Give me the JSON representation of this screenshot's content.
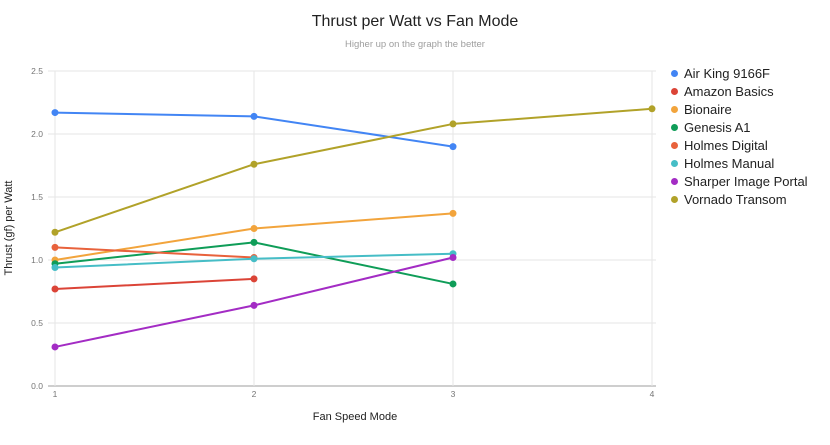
{
  "chart_data": {
    "type": "line",
    "title": "Thrust per Watt vs Fan Mode",
    "subtitle": "Higher up on the graph the better",
    "xlabel": "Fan Speed Mode",
    "ylabel": "Thrust (gf) per Watt",
    "xlim": [
      1,
      4
    ],
    "ylim": [
      0,
      2.5
    ],
    "x_ticks": [
      "1",
      "2",
      "3",
      "4"
    ],
    "y_ticks": [
      "0.0",
      "0.5",
      "1.0",
      "1.5",
      "2.0",
      "2.5"
    ],
    "grid": true,
    "legend_position": "right",
    "series": [
      {
        "name": "Air King 9166F",
        "color": "#4285F4",
        "x": [
          1,
          2,
          3
        ],
        "values": [
          2.17,
          2.14,
          1.9
        ]
      },
      {
        "name": "Amazon Basics",
        "color": "#DB4437",
        "x": [
          1,
          2
        ],
        "values": [
          0.77,
          0.85
        ]
      },
      {
        "name": "Bionaire",
        "color": "#F2A43C",
        "x": [
          1,
          2,
          3
        ],
        "values": [
          1.0,
          1.25,
          1.37
        ]
      },
      {
        "name": "Genesis A1",
        "color": "#0F9D58",
        "x": [
          1,
          2,
          3
        ],
        "values": [
          0.97,
          1.14,
          0.81
        ]
      },
      {
        "name": "Holmes Digital",
        "color": "#E8623C",
        "x": [
          1,
          2
        ],
        "values": [
          1.1,
          1.02
        ]
      },
      {
        "name": "Holmes Manual",
        "color": "#46BDC6",
        "x": [
          1,
          2,
          3
        ],
        "values": [
          0.94,
          1.01,
          1.05
        ]
      },
      {
        "name": "Sharper Image Portal",
        "color": "#A32CC4",
        "x": [
          1,
          2,
          3
        ],
        "values": [
          0.31,
          0.64,
          1.02
        ]
      },
      {
        "name": "Vornado Transom",
        "color": "#B1A229",
        "x": [
          1,
          2,
          3,
          4
        ],
        "values": [
          1.22,
          1.76,
          2.08,
          2.2
        ]
      }
    ]
  }
}
